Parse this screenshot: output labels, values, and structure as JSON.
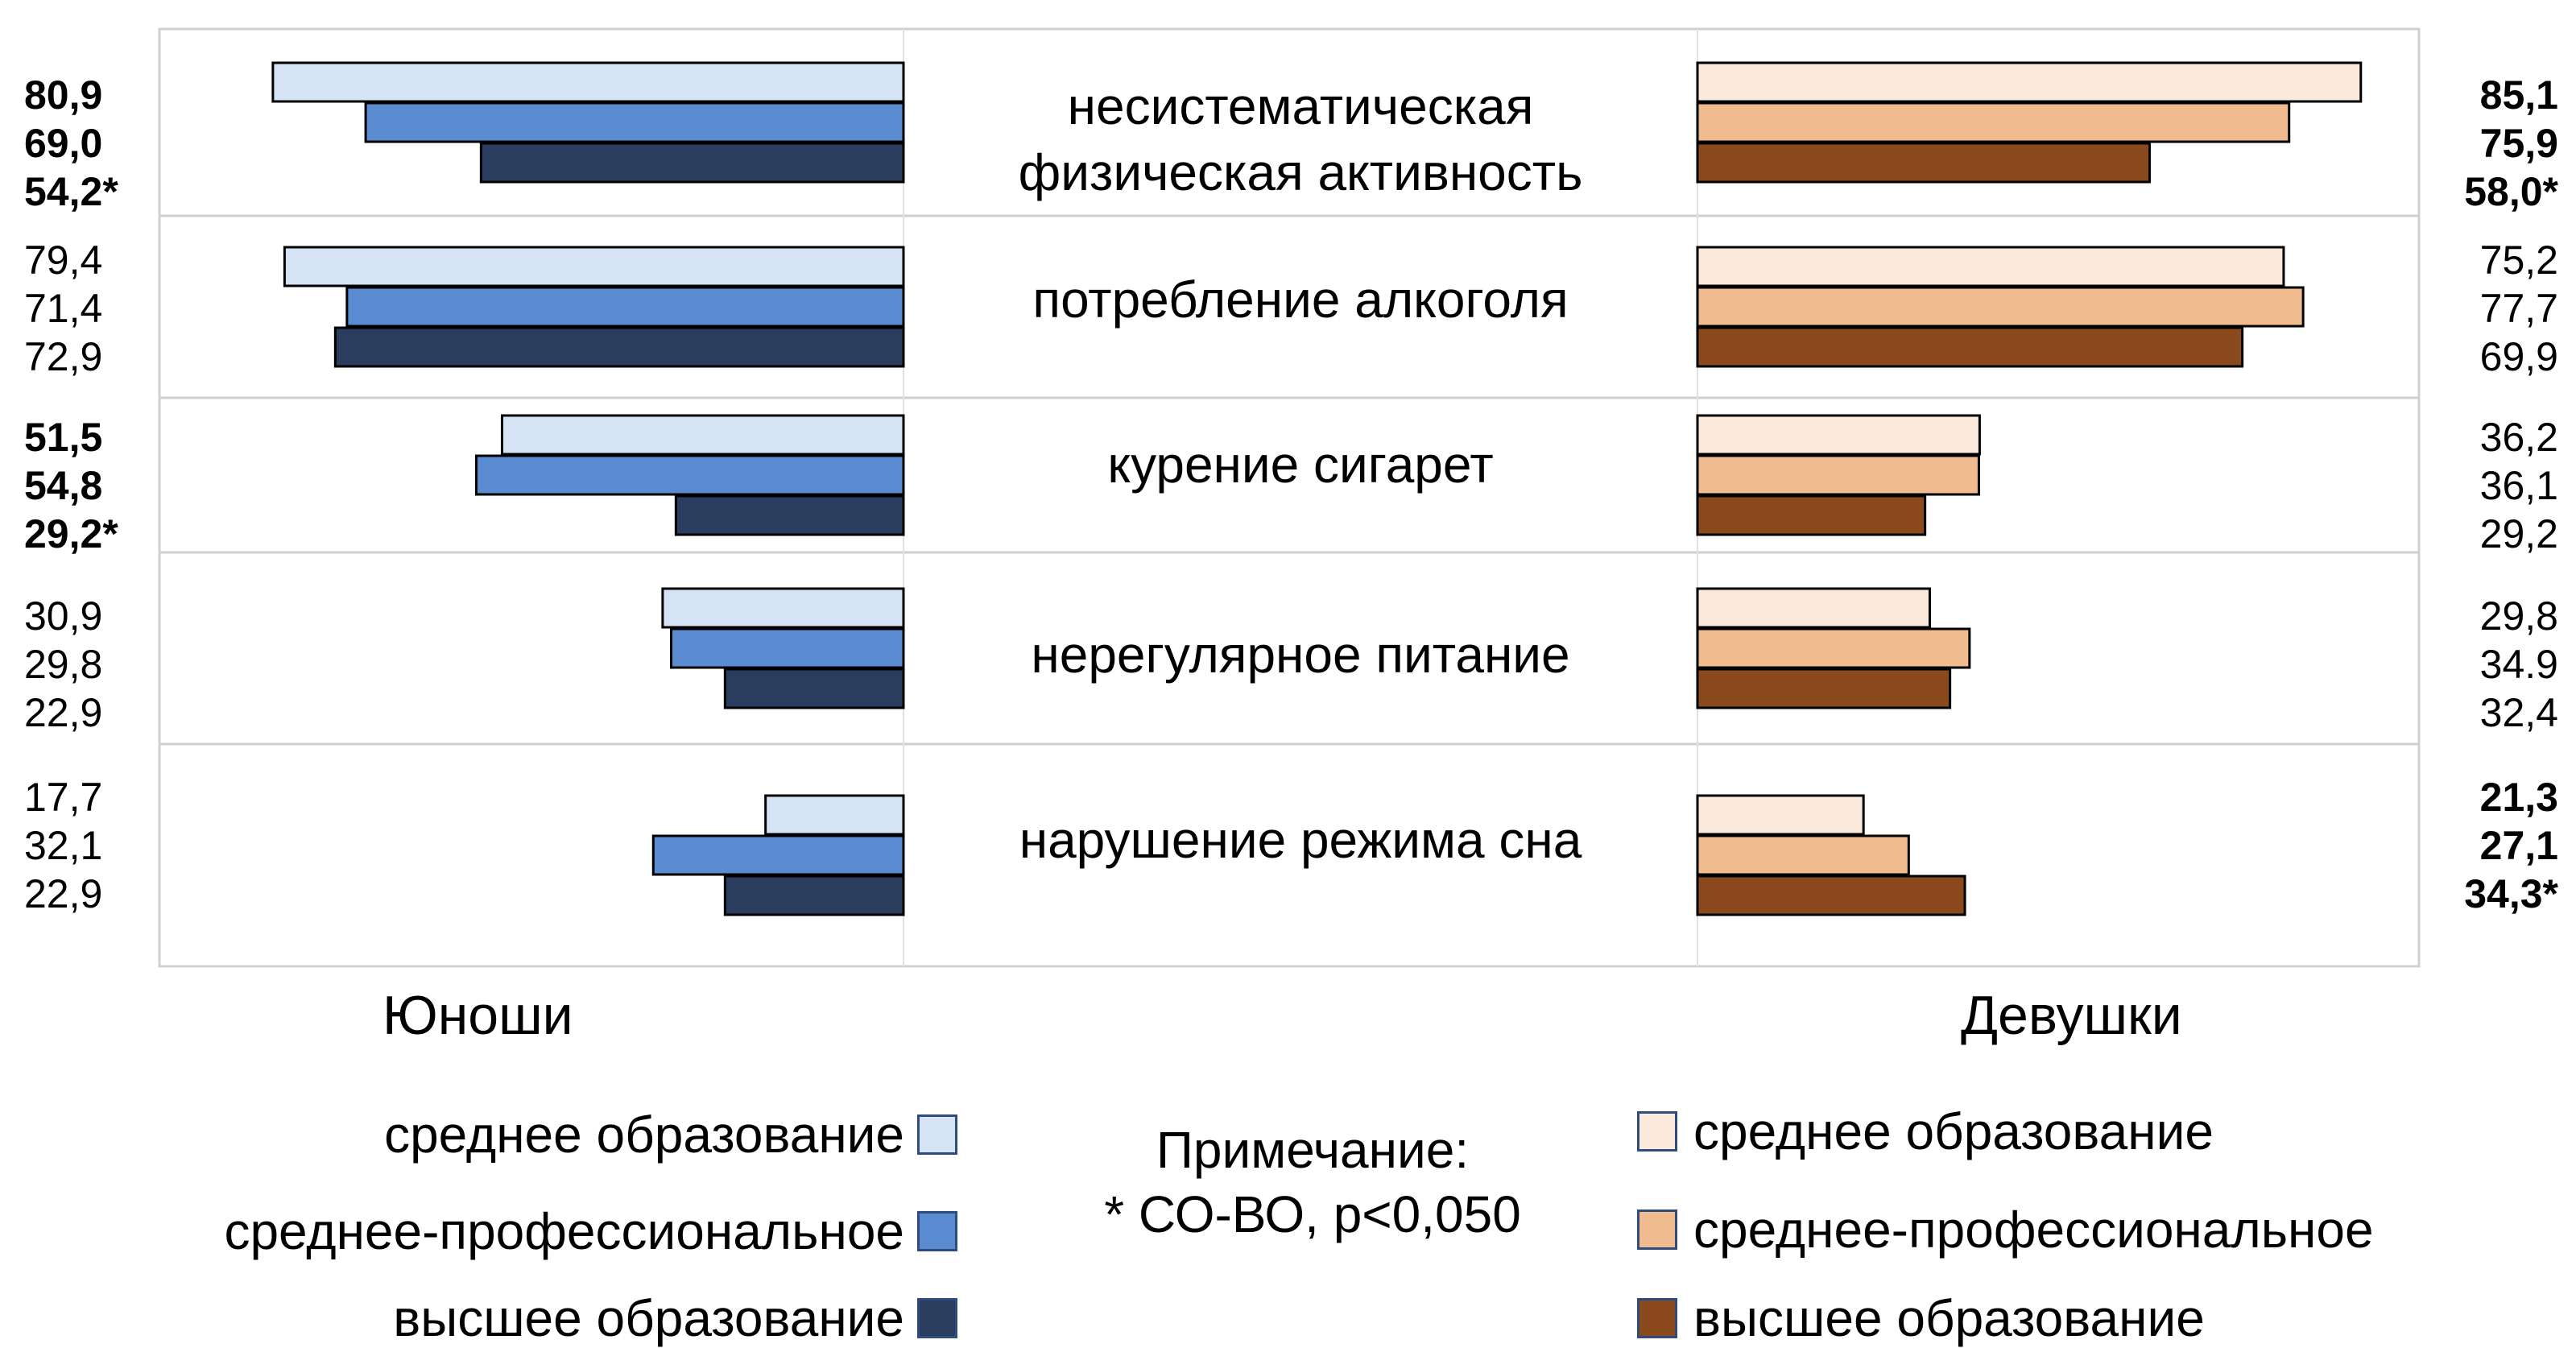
{
  "chart_data": {
    "type": "bar",
    "orientation": "horizontal-butterfly",
    "categories": [
      "несистематическая физическая активность",
      "потребление алкоголя",
      "курение сигарет",
      "нерегулярное питание",
      "нарушение режима сна"
    ],
    "category_lines": [
      [
        "несистематическая",
        "физическая активность"
      ],
      [
        "потребление алкоголя"
      ],
      [
        "курение сигарет"
      ],
      [
        "нерегулярное питание"
      ],
      [
        "нарушение режима сна"
      ]
    ],
    "panels": [
      {
        "name": "Юноши",
        "side": "left",
        "series": [
          {
            "name": "среднее образование",
            "color": "#d6e3f5",
            "values": [
              80.9,
              79.4,
              51.5,
              30.9,
              17.7
            ]
          },
          {
            "name": "среднее-профессиональное",
            "color": "#5b8bd0",
            "values": [
              69.0,
              71.4,
              54.8,
              29.8,
              32.1
            ]
          },
          {
            "name": "высшее образование",
            "color": "#2b3d5f",
            "values": [
              54.2,
              72.9,
              29.2,
              22.9,
              22.9
            ]
          }
        ],
        "value_labels": [
          [
            "80,9",
            "69,0",
            "54,2*"
          ],
          [
            "79,4",
            "71,4",
            "72,9"
          ],
          [
            "51,5",
            "54,8",
            "29,2*"
          ],
          [
            "30,9",
            "29,8",
            "22,9"
          ],
          [
            "17,7",
            "32,1",
            "22,9"
          ]
        ],
        "bold_groups": [
          true,
          false,
          true,
          false,
          false
        ]
      },
      {
        "name": "Девушки",
        "side": "right",
        "series": [
          {
            "name": "среднее образование",
            "color": "#fbe9dc",
            "values": [
              85.1,
              75.2,
              36.2,
              29.8,
              21.3
            ]
          },
          {
            "name": "среднее-профессиональное",
            "color": "#efbb8f",
            "values": [
              75.9,
              77.7,
              36.1,
              34.9,
              27.1
            ]
          },
          {
            "name": "высшее образование",
            "color": "#8b4a1e",
            "values": [
              58.0,
              69.9,
              29.2,
              32.4,
              34.3
            ]
          }
        ],
        "value_labels": [
          [
            "85,1",
            "75,9",
            "58,0*"
          ],
          [
            "75,2",
            "77,7",
            "69,9"
          ],
          [
            "36,2",
            "36,1",
            "29,2"
          ],
          [
            "29,8",
            "34.9",
            "32,4"
          ],
          [
            "21,3",
            "27,1",
            "34,3*"
          ]
        ],
        "bold_groups": [
          true,
          false,
          false,
          false,
          true
        ]
      }
    ],
    "xlim": [
      0,
      100
    ],
    "grid": false,
    "legend_position": "bottom"
  },
  "labels": {
    "left_panel": "Юноши",
    "right_panel": "Девушки"
  },
  "legend_left": [
    {
      "label": "среднее образование",
      "color": "#d6e3f5"
    },
    {
      "label": "среднее-профессиональное",
      "color": "#5b8bd0"
    },
    {
      "label": "высшее образование",
      "color": "#2b3d5f"
    }
  ],
  "legend_right": [
    {
      "label": "среднее образование",
      "color": "#fbe9dc"
    },
    {
      "label": "среднее-профессиональное",
      "color": "#efbb8f"
    },
    {
      "label": "высшее образование",
      "color": "#8b4a1e"
    }
  ],
  "note": {
    "line1": "Примечание:",
    "line2": "* СО-ВО, р<0,050"
  }
}
